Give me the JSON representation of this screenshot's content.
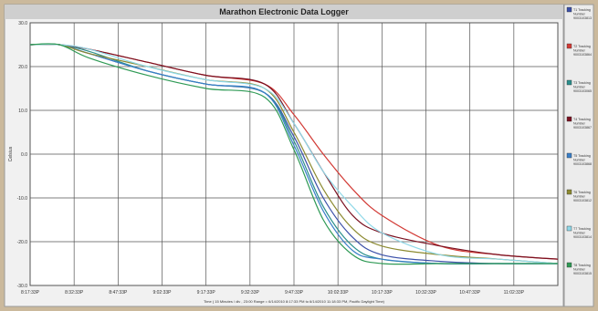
{
  "window": {
    "title": "Marathon Electronic Data Logger"
  },
  "legend": {
    "items": [
      {
        "label": "T1 Tracking",
        "sub1": "Number",
        "sub2": "9003103813",
        "color": "#3a4fa8"
      },
      {
        "label": "T2 Tracking",
        "sub1": "Number",
        "sub2": "9003103864",
        "color": "#d23a35"
      },
      {
        "label": "T3 Tracking",
        "sub1": "Number",
        "sub2": "9003103065",
        "color": "#2a8f8c"
      },
      {
        "label": "T4 Tracking",
        "sub1": "Number",
        "sub2": "9003103867",
        "color": "#7a1020"
      },
      {
        "label": "T5 Tracking",
        "sub1": "Number",
        "sub2": "9003103868",
        "color": "#3a7fc8"
      },
      {
        "label": "T6 Tracking",
        "sub1": "Number",
        "sub2": "9003103812",
        "color": "#8c8a30"
      },
      {
        "label": "T7 Tracking",
        "sub1": "Number",
        "sub2": "9003103814",
        "color": "#8fd8e8"
      },
      {
        "label": "T8 Tracking",
        "sub1": "Number",
        "sub2": "9003103815",
        "color": "#2f9a55"
      }
    ]
  },
  "chart_data": {
    "type": "line",
    "title": "Marathon Electronic Data Logger",
    "ylabel": "Celsius",
    "xlabel": "Time ( 15 Minutes / div , 23:00 Range = 6/14/2010 8:17:33 PM to 6/14/2010 11:18:33 PM, Pacific Daylight Time)",
    "ylim": [
      -30,
      30
    ],
    "xlim": [
      0,
      180
    ],
    "x_unit": "minutes after 8:17:33 PM",
    "yticks": [
      "30.0",
      "20.0",
      "10.0",
      "0.0",
      "-10.0",
      "-20.0",
      "-30.0"
    ],
    "xticks": [
      "8:17:33P",
      "8:32:33P",
      "8:47:33P",
      "9:02:33P",
      "9:17:33P",
      "9:32:33P",
      "9:47:33P",
      "10:02:33P",
      "10:17:33P",
      "10:32:33P",
      "10:47:33P",
      "11:02:33P"
    ],
    "grid": true,
    "legend_position": "right",
    "series": [
      {
        "name": "T1",
        "color": "#3a4fa8",
        "x": [
          0,
          10,
          20,
          40,
          60,
          80,
          90,
          100,
          110,
          120,
          140,
          160,
          180
        ],
        "y": [
          25,
          25,
          23,
          19,
          16,
          14,
          4,
          -10,
          -19,
          -23,
          -24.5,
          -25,
          -25
        ]
      },
      {
        "name": "T2",
        "color": "#d23a35",
        "x": [
          0,
          10,
          20,
          40,
          60,
          80,
          90,
          100,
          110,
          120,
          140,
          160,
          180
        ],
        "y": [
          25,
          25,
          24,
          21,
          18,
          16,
          9,
          0,
          -8,
          -14,
          -21,
          -23,
          -24
        ]
      },
      {
        "name": "T3",
        "color": "#2a8f8c",
        "x": [
          0,
          10,
          20,
          40,
          60,
          80,
          90,
          100,
          110,
          120,
          140,
          160,
          180
        ],
        "y": [
          25,
          25,
          23.5,
          19,
          16,
          14,
          3,
          -12,
          -21,
          -24,
          -25,
          -25,
          -25
        ]
      },
      {
        "name": "T4",
        "color": "#7a1020",
        "x": [
          0,
          10,
          20,
          40,
          60,
          80,
          90,
          100,
          110,
          120,
          140,
          160,
          180
        ],
        "y": [
          25,
          25,
          24,
          21,
          18,
          16,
          7,
          -4,
          -14,
          -18,
          -21,
          -23,
          -24
        ]
      },
      {
        "name": "T5",
        "color": "#3a7fc8",
        "x": [
          0,
          10,
          20,
          40,
          60,
          80,
          90,
          100,
          110,
          120,
          140,
          160,
          180
        ],
        "y": [
          25,
          25,
          23,
          19,
          16,
          14,
          2,
          -13,
          -22,
          -24,
          -25,
          -25,
          -25
        ]
      },
      {
        "name": "T6",
        "color": "#8c8a30",
        "x": [
          0,
          10,
          20,
          40,
          60,
          80,
          90,
          100,
          110,
          120,
          140,
          160,
          180
        ],
        "y": [
          25,
          25,
          23,
          20,
          17,
          15,
          5,
          -8,
          -17,
          -21,
          -23,
          -24,
          -25
        ]
      },
      {
        "name": "T7",
        "color": "#8fd8e8",
        "x": [
          0,
          10,
          20,
          40,
          60,
          80,
          90,
          100,
          110,
          120,
          140,
          160,
          180
        ],
        "y": [
          25,
          25,
          24,
          20,
          17,
          15,
          7,
          -4,
          -12,
          -18,
          -23,
          -24,
          -25
        ]
      },
      {
        "name": "T8",
        "color": "#2f9a55",
        "x": [
          0,
          10,
          20,
          40,
          60,
          80,
          90,
          100,
          110,
          120,
          140,
          160,
          180
        ],
        "y": [
          25,
          25,
          22,
          18,
          15,
          13,
          1,
          -15,
          -23,
          -25,
          -25,
          -25,
          -25
        ]
      }
    ]
  }
}
